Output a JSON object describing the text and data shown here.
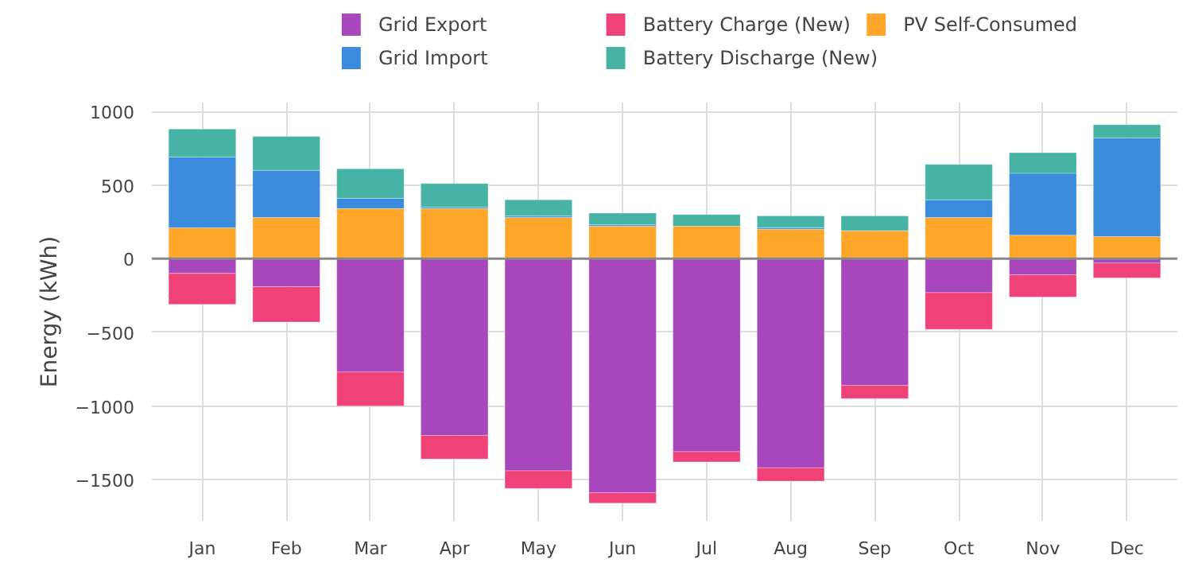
{
  "chart_data": {
    "type": "bar",
    "stacked": true,
    "ylabel": "Energy (kWh)",
    "categories": [
      "Jan",
      "Feb",
      "Mar",
      "Apr",
      "May",
      "Jun",
      "Jul",
      "Aug",
      "Sep",
      "Oct",
      "Nov",
      "Dec"
    ],
    "series": [
      {
        "name": "PV Self-Consumed",
        "color": "#ffa72a",
        "values": [
          210,
          280,
          340,
          340,
          280,
          220,
          220,
          200,
          190,
          280,
          160,
          150
        ]
      },
      {
        "name": "Grid Export",
        "color": "#a847bb",
        "values": [
          -100,
          -190,
          -770,
          -1200,
          -1440,
          -1590,
          -1310,
          -1420,
          -860,
          -230,
          -110,
          -30
        ]
      },
      {
        "name": "Grid Import",
        "color": "#3a8bdb",
        "values": [
          480,
          320,
          70,
          10,
          10,
          10,
          null,
          10,
          null,
          120,
          420,
          670
        ]
      },
      {
        "name": "Battery Charge (New)",
        "color": "#ee4279",
        "values": [
          -210,
          -240,
          -230,
          -160,
          -120,
          -70,
          -70,
          -90,
          -90,
          -250,
          -150,
          -100
        ]
      },
      {
        "name": "Battery Discharge (New)",
        "color": "#46b3a5",
        "values": [
          190,
          230,
          200,
          160,
          110,
          80,
          80,
          80,
          100,
          240,
          140,
          90
        ]
      }
    ],
    "ylim": [
      -1780,
      1060
    ],
    "yticks": [
      {
        "value": -1500,
        "label": "−1500"
      },
      {
        "value": -1000,
        "label": "−1000"
      },
      {
        "value": -500,
        "label": "−500"
      },
      0,
      500,
      1000
    ],
    "ref_lines": [
      {
        "axis": "y",
        "value": 0,
        "color": "#888888"
      }
    ],
    "grid": true,
    "legend": "top"
  }
}
